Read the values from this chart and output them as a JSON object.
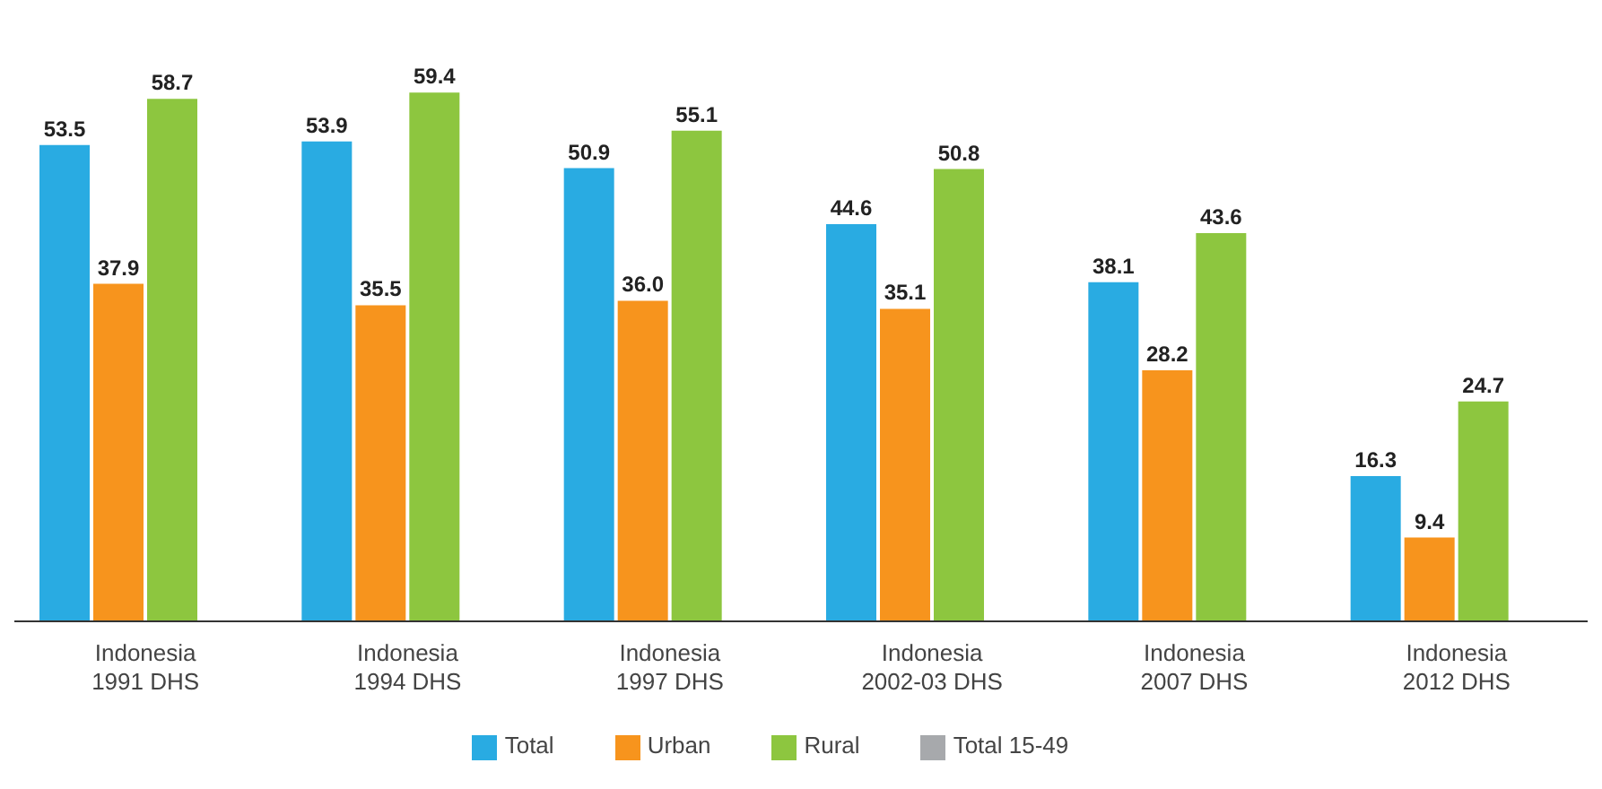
{
  "chart_data": {
    "type": "bar",
    "categories": [
      "Indonesia 1991 DHS",
      "Indonesia 1994 DHS",
      "Indonesia 1997 DHS",
      "Indonesia 2002-03 DHS",
      "Indonesia 2007 DHS",
      "Indonesia 2012 DHS"
    ],
    "series": [
      {
        "name": "Total",
        "color": "#29abe2",
        "values": [
          53.5,
          53.9,
          50.9,
          44.6,
          38.1,
          16.3
        ],
        "value_labels": [
          "53.5",
          "53.9",
          "50.9",
          "44.6",
          "38.1",
          "16.3"
        ]
      },
      {
        "name": "Urban",
        "color": "#f7941d",
        "values": [
          37.9,
          35.5,
          36.0,
          35.1,
          28.2,
          9.4
        ],
        "value_labels": [
          "37.9",
          "35.5",
          "36.0",
          "35.1",
          "28.2",
          "9.4"
        ]
      },
      {
        "name": "Rural",
        "color": "#8dc63f",
        "values": [
          58.7,
          59.4,
          55.1,
          50.8,
          43.6,
          24.7
        ],
        "value_labels": [
          "58.7",
          "59.4",
          "55.1",
          "50.8",
          "43.6",
          "24.7"
        ]
      },
      {
        "name": "Total 15-49",
        "color": "#a7a9ac",
        "values": [
          null,
          null,
          null,
          null,
          null,
          null
        ]
      }
    ],
    "legend": "bottom",
    "grid": false,
    "tick_labels": "x"
  }
}
